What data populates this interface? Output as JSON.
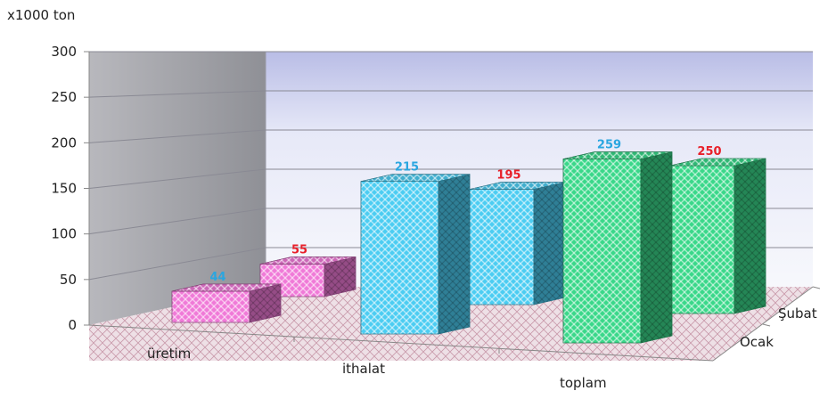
{
  "chart_data": {
    "type": "bar",
    "title": "",
    "unit_label": "x1000 ton",
    "categories": [
      "üretim",
      "ithalat",
      "toplam"
    ],
    "series": [
      {
        "name": "Şubat",
        "values": [
          55,
          195,
          250
        ],
        "label_color": "#e8202a"
      },
      {
        "name": "Ocak",
        "values": [
          44,
          215,
          259
        ],
        "label_color": "#2aa6e0"
      }
    ],
    "yticks": [
      0,
      50,
      100,
      150,
      200,
      250,
      300
    ],
    "ylim": [
      0,
      300
    ],
    "grid": true,
    "legend": "right (depth axis)",
    "category_colors": [
      "#f07ad8",
      "#4ccdf2",
      "#3ad88a"
    ]
  }
}
